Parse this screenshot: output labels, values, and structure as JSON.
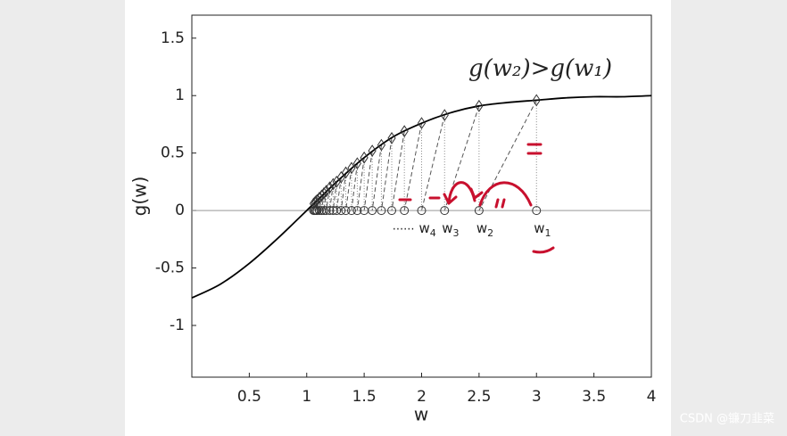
{
  "chart_data": {
    "type": "iteration",
    "xlabel": "w",
    "ylabel": "g(w)",
    "xlim": [
      0,
      4
    ],
    "ylim": [
      -1.45,
      1.7
    ],
    "xticks": [
      0.5,
      1,
      1.5,
      2,
      2.5,
      3,
      3.5,
      4
    ],
    "yticks": [
      -1,
      -0.5,
      0,
      0.5,
      1,
      1.5
    ],
    "curve": {
      "color": "#000000",
      "x": [
        0,
        0.25,
        0.5,
        0.75,
        1,
        1.25,
        1.5,
        1.75,
        2,
        2.25,
        2.5,
        2.75,
        3,
        3.25,
        3.5,
        3.75,
        4
      ],
      "y": [
        -0.76,
        -0.64,
        -0.46,
        -0.24,
        0,
        0.24,
        0.46,
        0.64,
        0.76,
        0.85,
        0.91,
        0.94,
        0.96,
        0.98,
        0.99,
        0.99,
        1.0
      ]
    },
    "iterates": {
      "color": "#333333",
      "w": [
        3,
        2.5,
        2.2,
        2.0,
        1.85,
        1.74,
        1.65,
        1.57,
        1.5,
        1.44,
        1.39,
        1.34,
        1.3,
        1.26,
        1.23,
        1.2,
        1.17,
        1.15,
        1.13,
        1.11,
        1.09,
        1.08,
        1.07,
        1.06
      ],
      "g": [
        0.96,
        0.91,
        0.83,
        0.76,
        0.69,
        0.63,
        0.57,
        0.52,
        0.46,
        0.41,
        0.37,
        0.33,
        0.29,
        0.25,
        0.23,
        0.2,
        0.17,
        0.15,
        0.13,
        0.11,
        0.09,
        0.08,
        0.07,
        0.06
      ]
    },
    "iterate_labels": [
      {
        "text": "w",
        "sub": "1"
      },
      {
        "text": "w",
        "sub": "2"
      },
      {
        "text": "w",
        "sub": "3"
      },
      {
        "text": "w",
        "sub": "4"
      }
    ],
    "ellipsis": "......",
    "annotation": "g(w₂)>g(w₁)",
    "annotation_color": "#c8102e",
    "watermark": "CSDN @镰刀韭菜"
  }
}
